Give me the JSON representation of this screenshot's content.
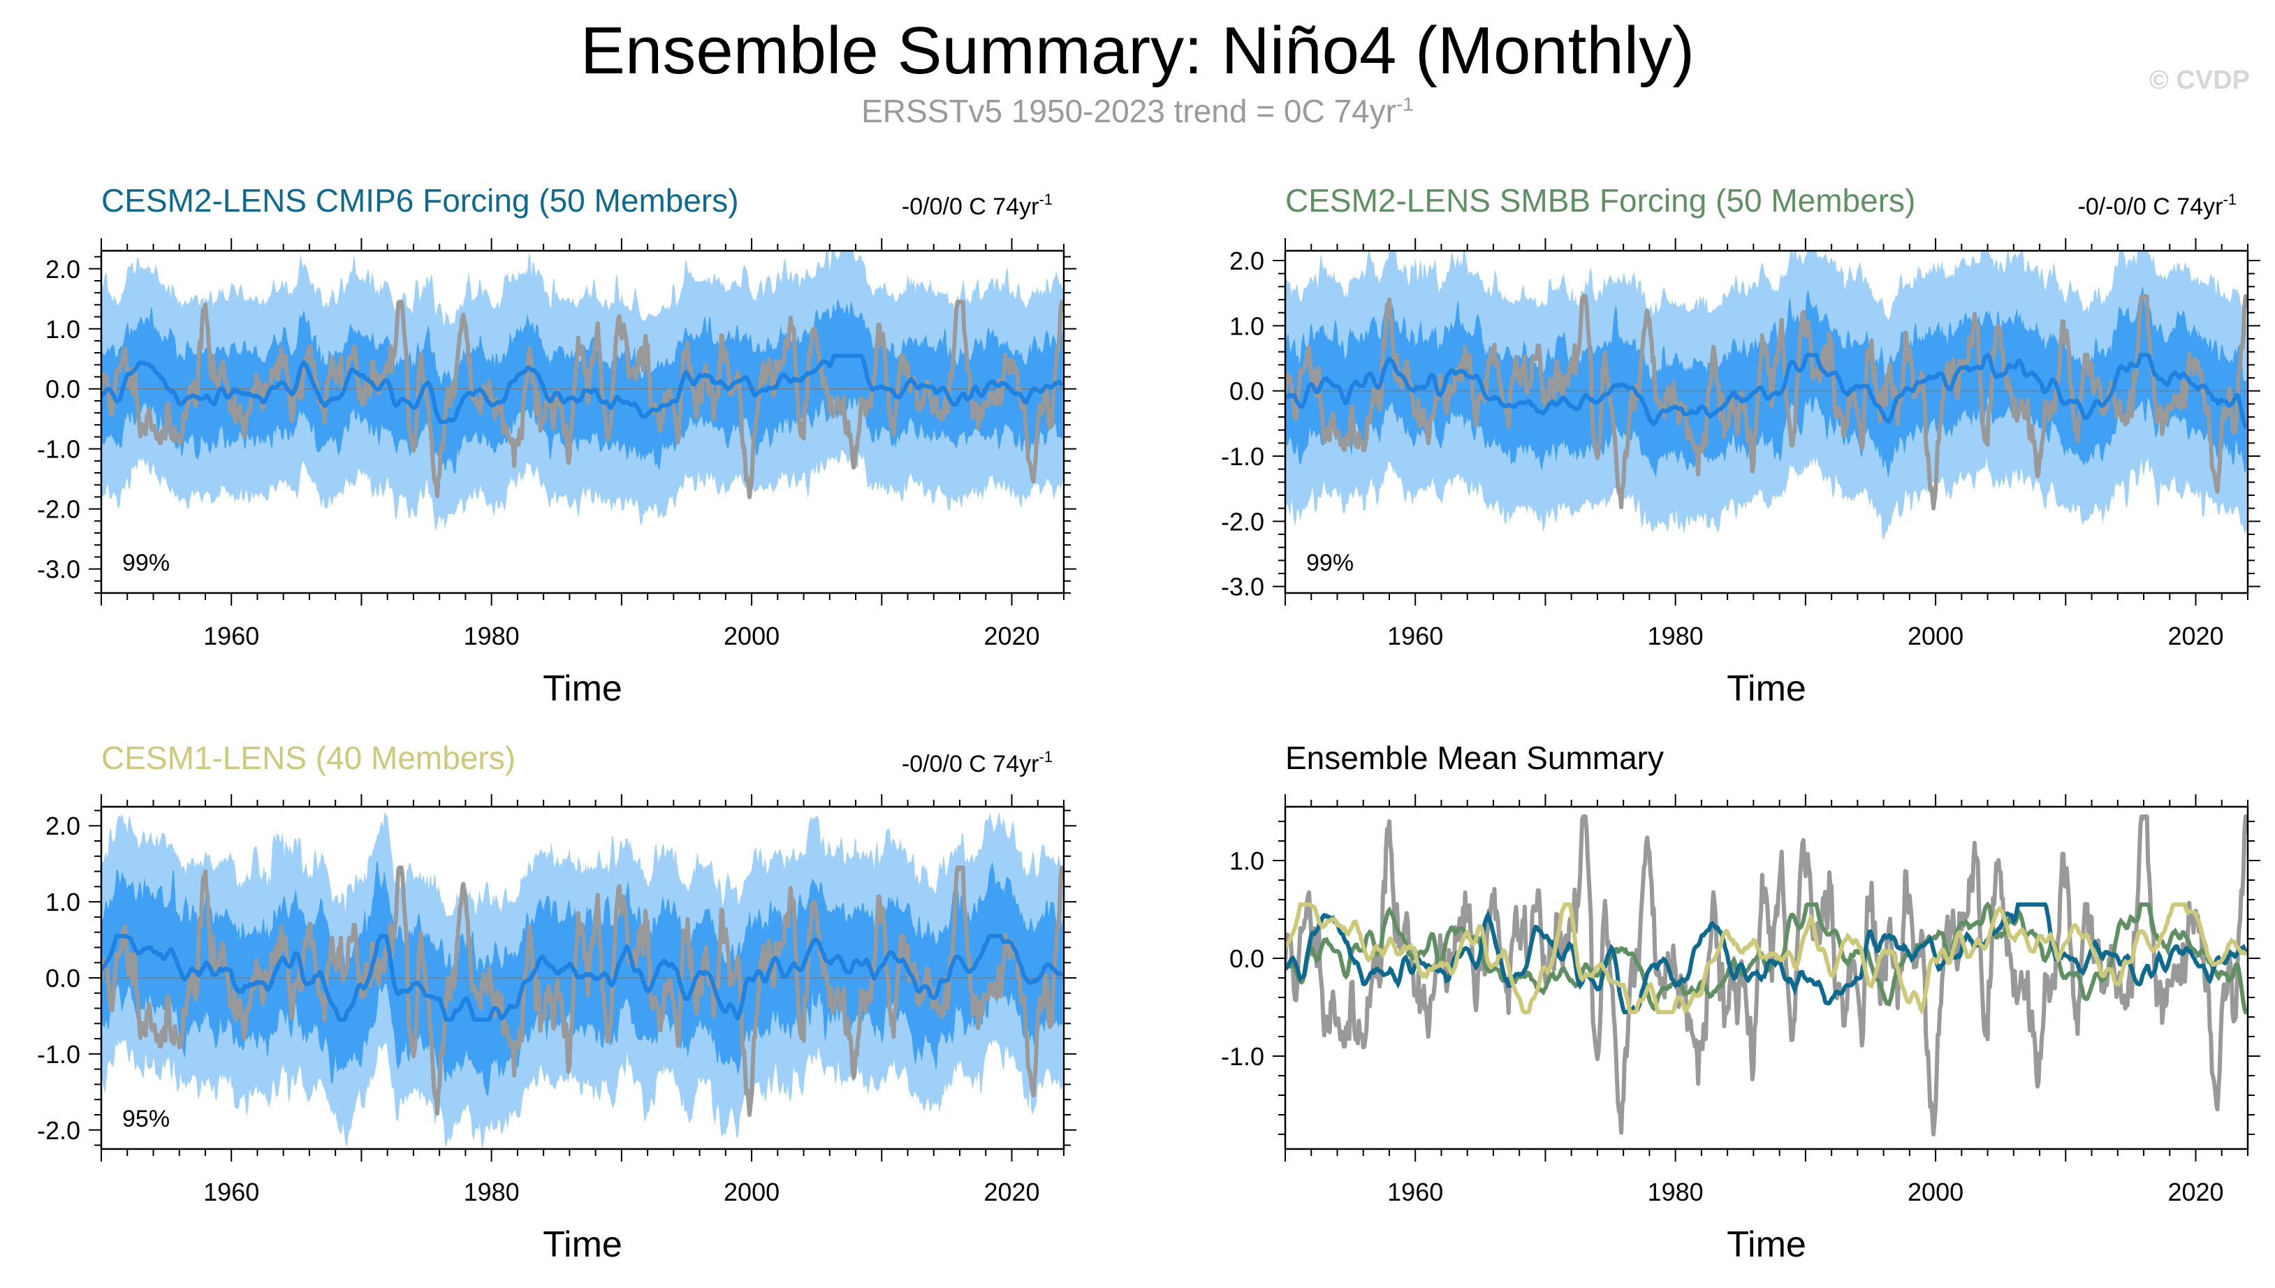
{
  "title": "Ensemble Summary: Niño4 (Monthly)",
  "subtitle": {
    "text": "ERSSTv5 1950-2023 trend = 0C 74yr",
    "superscript": "-1"
  },
  "copyright": "© CVDP",
  "colors": {
    "observations": "#999999",
    "band_outer": "#9fd0f9",
    "band_inner": "#3fa0f4",
    "ensemble_mean": "#1f82e0",
    "cmip6": "#0d6a8e",
    "smbb": "#5f8f62",
    "cesm1": "#cdc97a"
  },
  "chart_data": [
    {
      "type": "line",
      "id": "cmip6",
      "title": "CESM2-LENS CMIP6 Forcing (50 Members)",
      "title_color": "#0d6a8e",
      "trend_text": "-0/0/0 C 74yr",
      "trend_sup": "-1",
      "range_label": "99%",
      "xlabel": "Time",
      "xlim": [
        1950,
        2024
      ],
      "ylim": [
        -3.4,
        2.3
      ],
      "yticks": [
        2.0,
        1.0,
        0.0,
        -1.0,
        -2.0,
        -3.0
      ],
      "ytick_labels": [
        "2.0",
        "1.0",
        "0.0",
        "-1.0",
        "-2.0",
        "-3.0"
      ],
      "xticks": [
        1960,
        1980,
        2000,
        2020
      ],
      "series": [
        "observations",
        "ensemble_range_outer",
        "ensemble_range_inner",
        "ensemble_mean"
      ]
    },
    {
      "type": "line",
      "id": "smbb",
      "title": "CESM2-LENS SMBB Forcing (50 Members)",
      "title_color": "#5f8f62",
      "trend_text": "-0/-0/0 C 74yr",
      "trend_sup": "-1",
      "range_label": "99%",
      "xlabel": "Time",
      "xlim": [
        1950,
        2024
      ],
      "ylim": [
        -3.1,
        2.15
      ],
      "yticks": [
        2.0,
        1.0,
        0.0,
        -1.0,
        -2.0,
        -3.0
      ],
      "ytick_labels": [
        "2.0",
        "1.0",
        "0.0",
        "-1.0",
        "-2.0",
        "-3.0"
      ],
      "xticks": [
        1960,
        1980,
        2000,
        2020
      ],
      "series": [
        "observations",
        "ensemble_range_outer",
        "ensemble_range_inner",
        "ensemble_mean"
      ]
    },
    {
      "type": "line",
      "id": "cesm1",
      "title": "CESM1-LENS (40 Members)",
      "title_color": "#cdc97a",
      "trend_text": "-0/0/0 C 74yr",
      "trend_sup": "-1",
      "range_label": "95%",
      "xlabel": "Time",
      "xlim": [
        1950,
        2024
      ],
      "ylim": [
        -2.25,
        2.25
      ],
      "yticks": [
        2.0,
        1.0,
        0.0,
        -1.0,
        -2.0
      ],
      "ytick_labels": [
        "2.0",
        "1.0",
        "0.0",
        "-1.0",
        "-2.0"
      ],
      "xticks": [
        1960,
        1980,
        2000,
        2020
      ],
      "series": [
        "observations",
        "ensemble_range_outer",
        "ensemble_range_inner",
        "ensemble_mean"
      ]
    },
    {
      "type": "line",
      "id": "summary",
      "title": "Ensemble Mean Summary",
      "title_color": "#000000",
      "xlabel": "Time",
      "xlim": [
        1950,
        2024
      ],
      "ylim": [
        -1.95,
        1.55
      ],
      "yticks": [
        1.0,
        0.0,
        -1.0
      ],
      "ytick_labels": [
        "1.0",
        "0.0",
        "-1.0"
      ],
      "xticks": [
        1960,
        1980,
        2000,
        2020
      ],
      "series": [
        "observations",
        "CESM2-LENS CMIP6 Forcing mean",
        "CESM2-LENS SMBB Forcing mean",
        "CESM1-LENS mean"
      ]
    }
  ]
}
